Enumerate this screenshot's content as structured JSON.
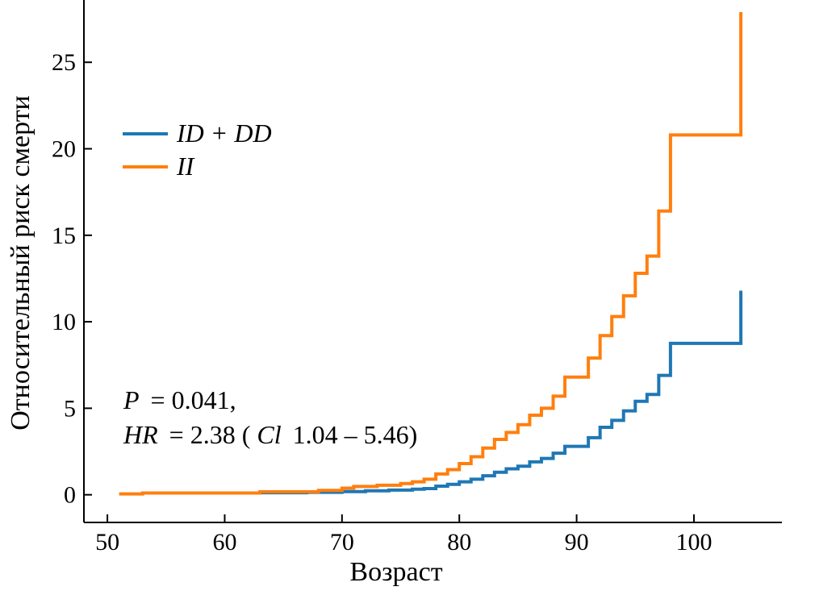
{
  "chart_data": {
    "type": "line",
    "step": true,
    "xlabel": "Возраст",
    "ylabel": "Относительный риск смерти",
    "xlim": [
      48,
      107.5
    ],
    "ylim": [
      -1.6,
      28.6
    ],
    "xticks": [
      50,
      60,
      70,
      80,
      90,
      100
    ],
    "yticks": [
      0,
      5,
      10,
      15,
      20,
      25
    ],
    "grid": false,
    "legend_position": "upper-left",
    "series": [
      {
        "name": "ID + DD",
        "name_italic_parts": [
          "ID",
          "DD"
        ],
        "color": "#1f77b4",
        "x": [
          63,
          67,
          70,
          72,
          74,
          76,
          77,
          78,
          79,
          80,
          81,
          82,
          83,
          84,
          85,
          86,
          87,
          88,
          89,
          90,
          91,
          92,
          93,
          94,
          95,
          96,
          97,
          98,
          104
        ],
        "y": [
          0.12,
          0.14,
          0.18,
          0.23,
          0.27,
          0.32,
          0.36,
          0.5,
          0.6,
          0.75,
          0.9,
          1.1,
          1.3,
          1.5,
          1.65,
          1.9,
          2.1,
          2.4,
          2.8,
          2.8,
          3.3,
          3.9,
          4.3,
          4.85,
          5.4,
          5.8,
          6.9,
          8.75,
          11.8
        ]
      },
      {
        "name": "II",
        "name_italic_parts": [
          "II"
        ],
        "color": "#ff7f0e",
        "x": [
          51,
          53,
          63,
          68,
          70,
          71,
          73,
          75,
          76,
          77,
          78,
          79,
          80,
          81,
          82,
          83,
          84,
          85,
          86,
          87,
          88,
          89,
          90,
          91,
          92,
          93,
          94,
          95,
          96,
          97,
          98,
          104
        ],
        "y": [
          0.05,
          0.1,
          0.17,
          0.25,
          0.38,
          0.48,
          0.55,
          0.65,
          0.75,
          0.9,
          1.2,
          1.45,
          1.8,
          2.2,
          2.7,
          3.2,
          3.6,
          4.05,
          4.6,
          5.0,
          5.7,
          6.8,
          6.8,
          7.9,
          9.2,
          10.3,
          11.5,
          12.8,
          13.8,
          16.4,
          20.8,
          27.9
        ]
      }
    ],
    "annotations": {
      "p_label": "P",
      "p_value": "= 0.041,",
      "hr_label": "HR",
      "hr_value": "= 2.38 (",
      "ci_label": "Cl",
      "ci_value": "1.04 – 5.46)"
    }
  }
}
